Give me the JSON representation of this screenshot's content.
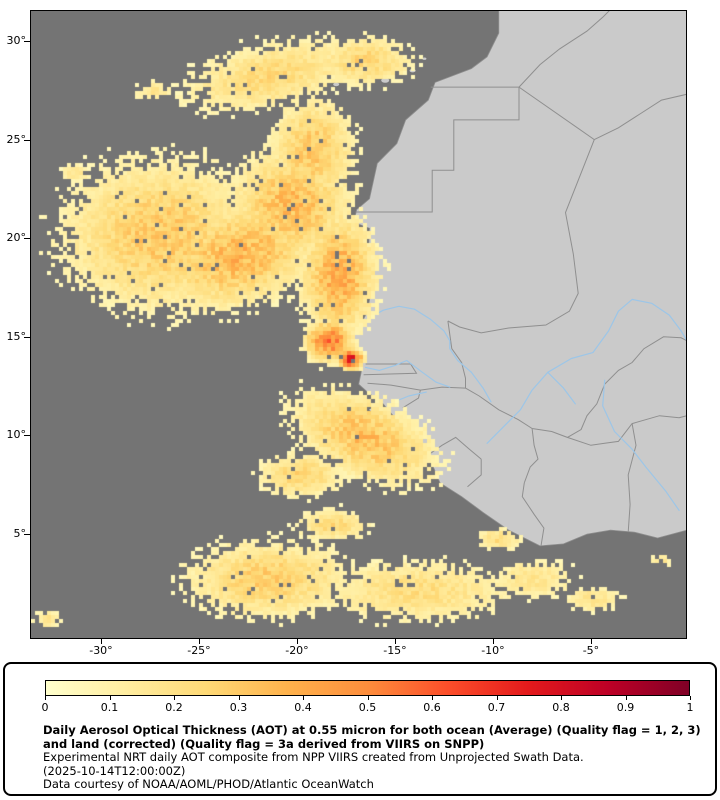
{
  "map": {
    "lat_ticks": [
      {
        "label": "30°",
        "value": 30
      },
      {
        "label": "25°",
        "value": 25
      },
      {
        "label": "20°",
        "value": 20
      },
      {
        "label": "15°",
        "value": 15
      },
      {
        "label": "10°",
        "value": 10
      },
      {
        "label": "5°",
        "value": 5
      }
    ],
    "lon_ticks": [
      {
        "label": "-30°",
        "value": -30
      },
      {
        "label": "-25°",
        "value": -25
      },
      {
        "label": "-20°",
        "value": -20
      },
      {
        "label": "-15°",
        "value": -15
      },
      {
        "label": "-10°",
        "value": -10
      },
      {
        "label": "-5°",
        "value": -5
      }
    ],
    "colors": {
      "ocean": "#747474",
      "land": "#cacaca",
      "coastline": "#8f8f8f",
      "border": "#8f8f8f",
      "river": "#9cc6e8",
      "frame": "#000000"
    }
  },
  "legend": {
    "colorbar": {
      "min": 0,
      "max": 1,
      "ticks": [
        "0",
        "0.1",
        "0.2",
        "0.3",
        "0.4",
        "0.5",
        "0.6",
        "0.7",
        "0.8",
        "0.9",
        "1"
      ],
      "gradient_stops": [
        "#ffffcc",
        "#ffeda0",
        "#fed976",
        "#feb24c",
        "#fd8d3c",
        "#fc4e2a",
        "#e31a1c",
        "#bd0026",
        "#800026"
      ]
    },
    "caption_bold": "Daily Aerosol Optical Thickness (AOT) at 0.55 micron for both ocean (Average) (Quality flag = 1, 2, 3) and land (corrected) (Quality flag = 3a derived from VIIRS on SNPP)",
    "caption_line2": "Experimental NRT daily AOT composite from NPP VIIRS created from Unprojected Swath Data.",
    "caption_timestamp": "(2025-10-14T12:00:00Z)",
    "caption_credit": "Data courtesy of NOAA/AOML/PHOD/Atlantic OceanWatch"
  }
}
